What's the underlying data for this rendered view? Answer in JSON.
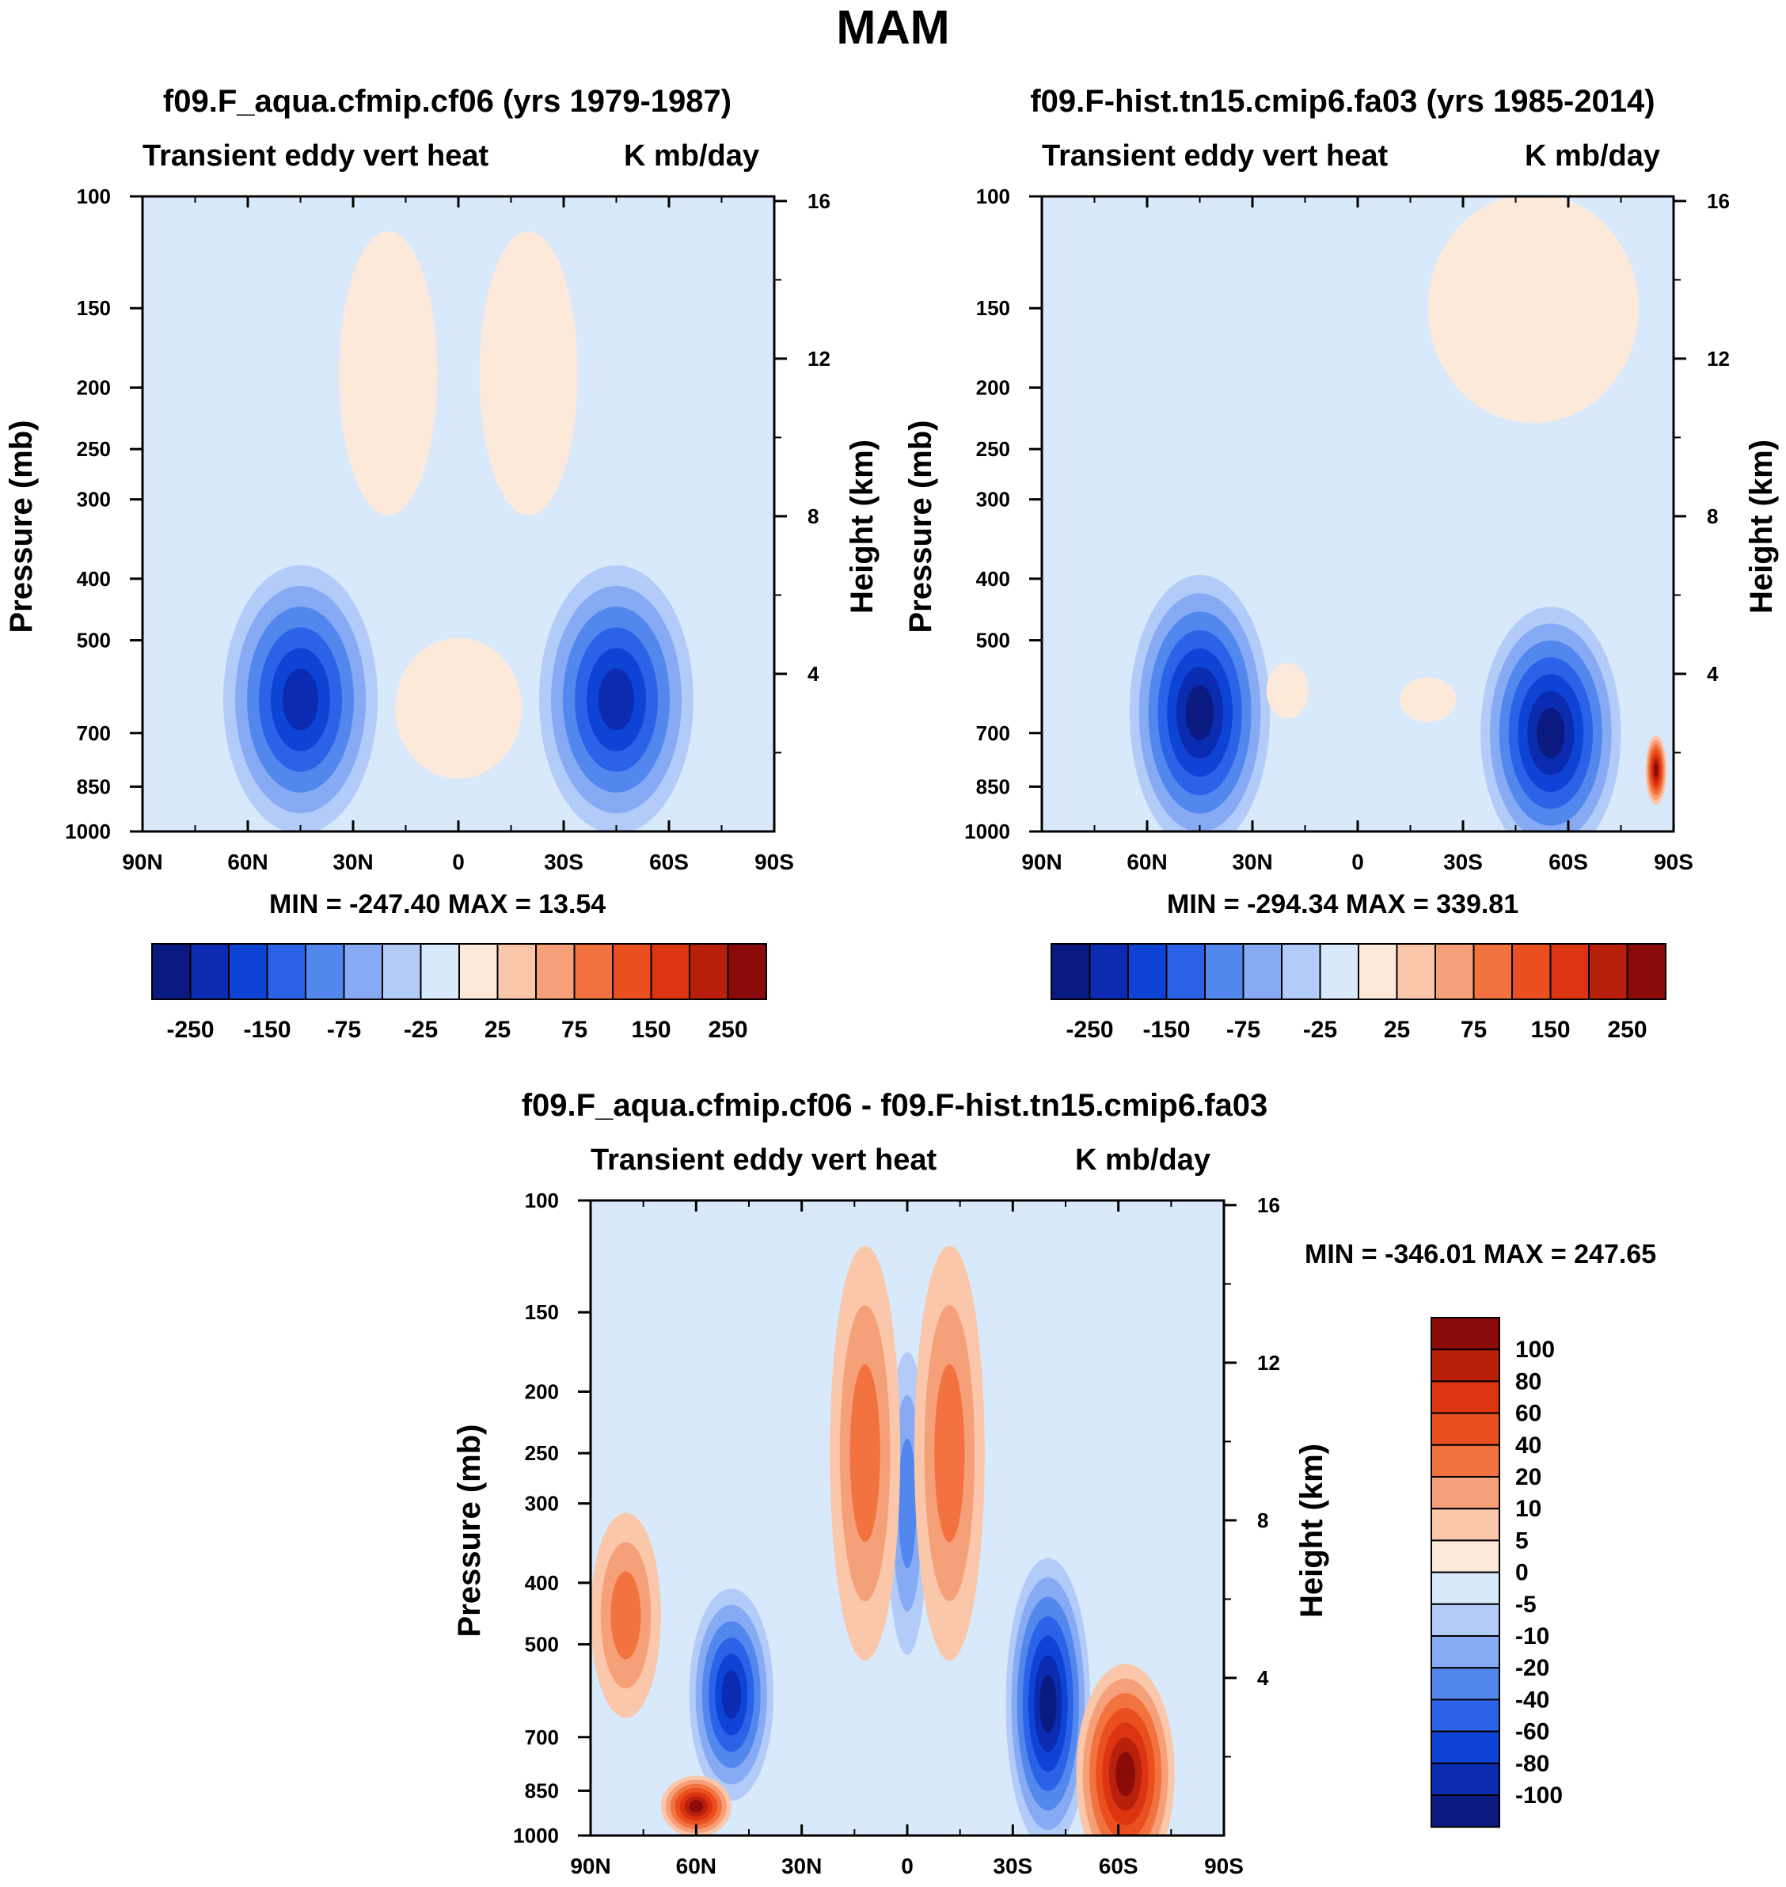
{
  "figure_title": "MAM",
  "panels": {
    "left": {
      "case_title": "f09.F_aqua.cfmip.cf06 (yrs 1979-1987)",
      "variable": "Transient eddy vert heat",
      "units": "K mb/day",
      "ylabel": "Pressure (mb)",
      "y2label": "Height (km)",
      "stats": "MIN = -247.40   MAX =  13.54"
    },
    "right": {
      "case_title": "f09.F-hist.tn15.cmip6.fa03 (yrs 1985-2014)",
      "variable": "Transient eddy vert heat",
      "units": "K mb/day",
      "ylabel": "Pressure (mb)",
      "y2label": "Height (km)",
      "stats": "MIN = -294.34   MAX = 339.81"
    },
    "diff": {
      "case_title": "f09.F_aqua.cfmip.cf06 - f09.F-hist.tn15.cmip6.fa03",
      "variable": "Transient eddy vert heat",
      "units": "K mb/day",
      "ylabel": "Pressure (mb)",
      "y2label": "Height (km)",
      "stats": "MIN = -346.01   MAX = 247.65"
    }
  },
  "chart_data": [
    {
      "type": "contour",
      "panel": "left",
      "title": "f09.F_aqua.cfmip.cf06 (yrs 1979-1987)",
      "x_ticks": [
        "90N",
        "60N",
        "30N",
        "0",
        "30S",
        "60S",
        "90S"
      ],
      "x_values": [
        90,
        60,
        30,
        0,
        -30,
        -60,
        -90
      ],
      "y_ticks": [
        100,
        150,
        200,
        250,
        300,
        400,
        500,
        700,
        850,
        1000
      ],
      "y2_ticks": [
        16,
        12,
        8,
        4
      ],
      "ylim": [
        1000,
        100
      ],
      "min": -247.4,
      "max": 13.54,
      "features": [
        {
          "lat": 45,
          "p": 620,
          "value": -247,
          "extent_lat": 22,
          "extent_p": 280
        },
        {
          "lat": -45,
          "p": 620,
          "value": -240,
          "extent_lat": 22,
          "extent_p": 280
        },
        {
          "lat": 0,
          "p": 280,
          "value": -20,
          "extent_lat": 6,
          "extent_p": 60
        },
        {
          "lat": 20,
          "p": 190,
          "value": 10,
          "extent_lat": 14,
          "extent_p": 90
        },
        {
          "lat": -20,
          "p": 190,
          "value": 10,
          "extent_lat": 14,
          "extent_p": 90
        },
        {
          "lat": 0,
          "p": 640,
          "value": 13.5,
          "extent_lat": 18,
          "extent_p": 160
        }
      ]
    },
    {
      "type": "contour",
      "panel": "right",
      "title": "f09.F-hist.tn15.cmip6.fa03 (yrs 1985-2014)",
      "x_ticks": [
        "90N",
        "60N",
        "30N",
        "0",
        "30S",
        "60S",
        "90S"
      ],
      "x_values": [
        90,
        60,
        30,
        0,
        -30,
        -60,
        -90
      ],
      "y_ticks": [
        100,
        150,
        200,
        250,
        300,
        400,
        500,
        700,
        850,
        1000
      ],
      "y2_ticks": [
        16,
        12,
        8,
        4
      ],
      "ylim": [
        1000,
        100
      ],
      "min": -294.34,
      "max": 339.81,
      "features": [
        {
          "lat": 45,
          "p": 650,
          "value": -250,
          "extent_lat": 20,
          "extent_p": 300
        },
        {
          "lat": -55,
          "p": 700,
          "value": -294,
          "extent_lat": 20,
          "extent_p": 300
        },
        {
          "lat": 20,
          "p": 600,
          "value": 10,
          "extent_lat": 6,
          "extent_p": 60
        },
        {
          "lat": -20,
          "p": 620,
          "value": 10,
          "extent_lat": 8,
          "extent_p": 50
        },
        {
          "lat": -50,
          "p": 150,
          "value": 10,
          "extent_lat": 30,
          "extent_p": 80
        },
        {
          "lat": -85,
          "p": 800,
          "value": 339.8,
          "extent_lat": 3,
          "extent_p": 100
        }
      ]
    },
    {
      "type": "contour",
      "panel": "difference",
      "title": "f09.F_aqua.cfmip.cf06 - f09.F-hist.tn15.cmip6.fa03",
      "x_ticks": [
        "90N",
        "60N",
        "30N",
        "0",
        "30S",
        "60S",
        "90S"
      ],
      "x_values": [
        90,
        60,
        30,
        0,
        -30,
        -60,
        -90
      ],
      "y_ticks": [
        100,
        150,
        200,
        250,
        300,
        400,
        500,
        700,
        850,
        1000
      ],
      "y2_ticks": [
        16,
        12,
        8,
        4
      ],
      "ylim": [
        1000,
        100
      ],
      "min": -346.01,
      "max": 247.65,
      "features": [
        {
          "lat": 50,
          "p": 600,
          "value": -80,
          "extent_lat": 12,
          "extent_p": 220
        },
        {
          "lat": -40,
          "p": 620,
          "value": -100,
          "extent_lat": 12,
          "extent_p": 300
        },
        {
          "lat": 0,
          "p": 300,
          "value": -30,
          "extent_lat": 6,
          "extent_p": 150
        },
        {
          "lat": -62,
          "p": 800,
          "value": 100,
          "extent_lat": 14,
          "extent_p": 350
        },
        {
          "lat": 60,
          "p": 900,
          "value": 100,
          "extent_lat": 10,
          "extent_p": 100
        },
        {
          "lat": 80,
          "p": 450,
          "value": 20,
          "extent_lat": 10,
          "extent_p": 160
        },
        {
          "lat": 12,
          "p": 250,
          "value": 20,
          "extent_lat": 10,
          "extent_p": 200
        },
        {
          "lat": -12,
          "p": 250,
          "value": 20,
          "extent_lat": 10,
          "extent_p": 200
        }
      ]
    }
  ],
  "colorbars": {
    "main": {
      "labels": [
        "-250",
        "-150",
        "-75",
        "-25",
        "25",
        "75",
        "150",
        "250"
      ],
      "colors": [
        "#0a1a80",
        "#0b2bb0",
        "#0d44d6",
        "#2b63e8",
        "#5287ee",
        "#86aaf3",
        "#b2cbf8",
        "#d8e9fc",
        "#fde9da",
        "#fbc7aa",
        "#f6a079",
        "#f2733f",
        "#ea4f1f",
        "#dc3410",
        "#b8200c",
        "#8b0a0a"
      ]
    },
    "diff": {
      "labels": [
        "100",
        "80",
        "60",
        "40",
        "20",
        "10",
        "5",
        "0",
        "-5",
        "-10",
        "-20",
        "-40",
        "-60",
        "-80",
        "-100"
      ],
      "colors": [
        "#8b0a0a",
        "#b8200c",
        "#dc3410",
        "#ea4f1f",
        "#f2733f",
        "#f6a079",
        "#fbc7aa",
        "#fde9da",
        "#d8e9fc",
        "#b2cbf8",
        "#86aaf3",
        "#5287ee",
        "#2b63e8",
        "#0d44d6",
        "#0b2bb0",
        "#0a1a80"
      ]
    }
  }
}
